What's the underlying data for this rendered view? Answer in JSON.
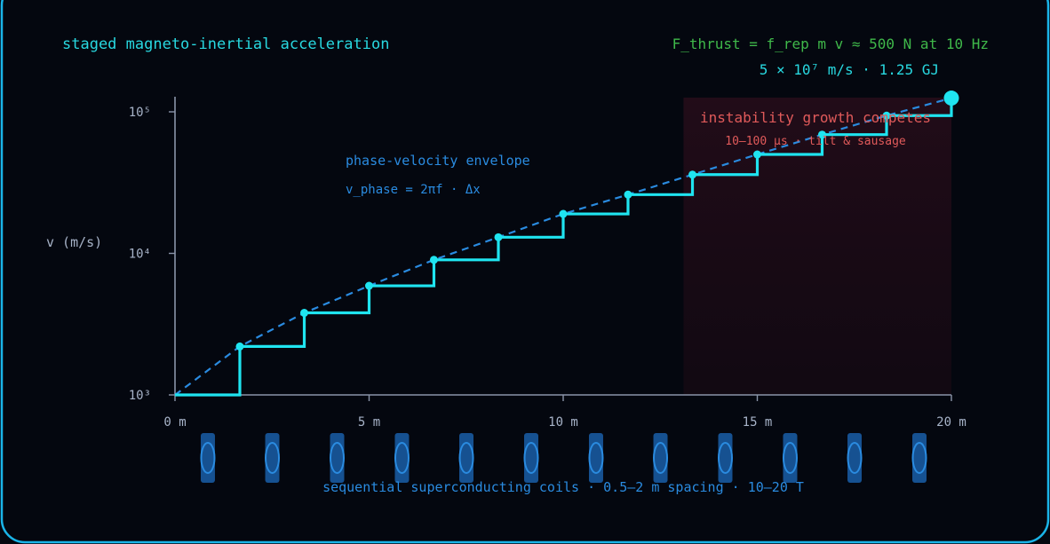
{
  "header": {
    "title": "staged magneto-inertial acceleration",
    "formula": "F_thrust = f_rep m v ≈ 500 N at 10 Hz",
    "summary": "5 × 10⁷ m/s · 1.25 GJ"
  },
  "chart_data": {
    "type": "line",
    "ylabel": "v (m/s)",
    "xlabel": "",
    "yscale": "log",
    "xlim": [
      0,
      20
    ],
    "ylim": [
      1000,
      130000
    ],
    "x_ticks": [
      0,
      5,
      10,
      15,
      20
    ],
    "x_tick_labels": [
      "0 m",
      "5 m",
      "10 m",
      "15 m",
      "20 m"
    ],
    "y_ticks": [
      1000,
      10000,
      100000
    ],
    "y_tick_labels": [
      "10³",
      "10⁴",
      "10⁵"
    ],
    "grid": false,
    "series": [
      {
        "style": "dashed",
        "color": "#2a8be0",
        "x": [
          0,
          1.67,
          3.33,
          5,
          6.67,
          8.33,
          10,
          11.67,
          13.33,
          15,
          16.67,
          18.33,
          20
        ],
        "values": [
          1000,
          2200,
          3800,
          5900,
          9000,
          13000,
          19000,
          26000,
          36000,
          50000,
          69000,
          94000,
          125000
        ]
      },
      {
        "style": "step",
        "color": "#1fe4f0",
        "x": [
          0,
          1.67,
          3.33,
          5,
          6.67,
          8.33,
          10,
          11.67,
          13.33,
          15,
          16.67,
          18.33,
          20
        ],
        "values": [
          1000,
          2200,
          3800,
          5900,
          9000,
          13000,
          19000,
          26000,
          36000,
          50000,
          69000,
          94000,
          125000
        ]
      }
    ],
    "annotations": [
      {
        "text": "phase-velocity envelope",
        "color": "#2a8be0"
      },
      {
        "text": "v_phase = 2πf · Δx",
        "color": "#2a8be0"
      },
      {
        "text": "instability growth competes",
        "color": "#e05a5a"
      },
      {
        "text": "10–100 μs · tilt & sausage",
        "color": "#e05a5a"
      },
      {
        "text": "sequential superconducting coils · 0.5–2 m spacing · 10–20 T",
        "color": "#2a8be0"
      }
    ],
    "instability_region": {
      "x_start": 13.1,
      "x_end": 20
    },
    "coil_positions": [
      1.67,
      3.33,
      5,
      6.67,
      8.33,
      10,
      11.67,
      13.33,
      15,
      16.67,
      18.33,
      20
    ]
  },
  "colors": {
    "background": "#04070f",
    "frame": "#1ab4e8",
    "title": "#28d8e0",
    "formula": "#3fb84a",
    "axis": "#8a94a8",
    "tick_text": "#a7b3c8",
    "step": "#1fe4f0",
    "envelope": "#2a8be0",
    "instability": "#e05a5a",
    "coil": "#1a5ea8"
  }
}
